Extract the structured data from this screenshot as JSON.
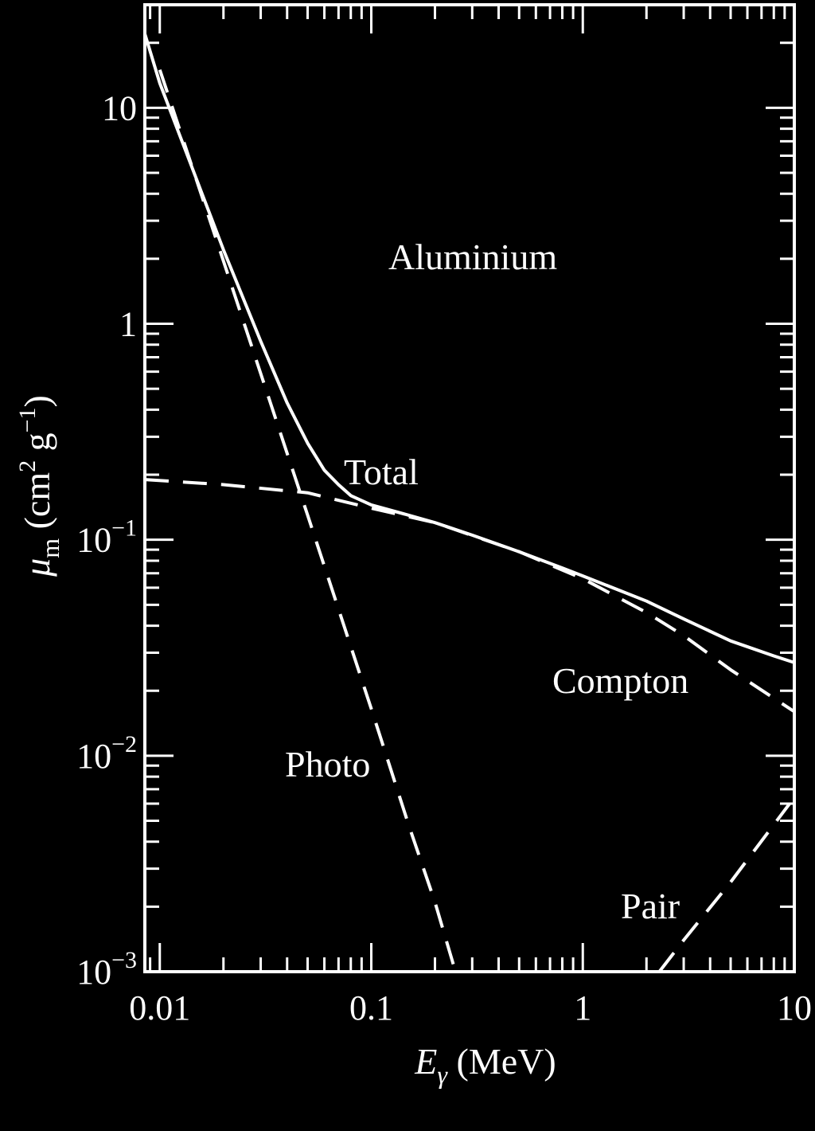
{
  "chart_data": {
    "type": "line",
    "title": "",
    "inner_label": "Aluminium",
    "xlabel": {
      "main": "E",
      "sub": "γ",
      "unit": " (MeV)"
    },
    "ylabel": {
      "main": "μ",
      "sub": "m",
      "unit_open": " (cm",
      "unit_sup1": "2",
      "unit_mid": " g",
      "unit_sup2": "−1",
      "unit_close": ")"
    },
    "xscale": "log",
    "yscale": "log",
    "xlim": [
      0.0085,
      10
    ],
    "ylim": [
      0.001,
      30
    ],
    "x_ticks": [
      {
        "value": 0.01,
        "label": "0.01"
      },
      {
        "value": 0.1,
        "label": "0.1"
      },
      {
        "value": 1,
        "label": "1"
      },
      {
        "value": 10,
        "label": "10"
      }
    ],
    "y_ticks": [
      {
        "value": 0.001,
        "base": "10",
        "exp": "−3"
      },
      {
        "value": 0.01,
        "base": "10",
        "exp": "−2"
      },
      {
        "value": 0.1,
        "base": "10",
        "exp": "−1"
      },
      {
        "value": 1,
        "base": "1",
        "exp": ""
      },
      {
        "value": 10,
        "base": "10",
        "exp": ""
      }
    ],
    "grid": false,
    "series": [
      {
        "name": "Total",
        "style": "solid",
        "x": [
          0.0085,
          0.01,
          0.015,
          0.02,
          0.03,
          0.04,
          0.05,
          0.06,
          0.07,
          0.08,
          0.1,
          0.15,
          0.2,
          0.3,
          0.5,
          0.8,
          1,
          2,
          3,
          5,
          8,
          10
        ],
        "y": [
          22,
          13,
          4.6,
          2.2,
          0.83,
          0.43,
          0.28,
          0.21,
          0.18,
          0.16,
          0.145,
          0.13,
          0.12,
          0.105,
          0.088,
          0.074,
          0.068,
          0.052,
          0.043,
          0.034,
          0.029,
          0.027
        ]
      },
      {
        "name": "Photo",
        "style": "dashed",
        "x": [
          0.01,
          0.02,
          0.05,
          0.1,
          0.15,
          0.2,
          0.25
        ],
        "y": [
          15,
          1.95,
          0.13,
          0.0165,
          0.0048,
          0.0021,
          0.001
        ]
      },
      {
        "name": "Compton",
        "style": "dashed",
        "x": [
          0.0085,
          0.02,
          0.05,
          0.1,
          0.2,
          0.5,
          1,
          2,
          3,
          5,
          10
        ],
        "y": [
          0.19,
          0.18,
          0.165,
          0.14,
          0.12,
          0.088,
          0.066,
          0.046,
          0.036,
          0.025,
          0.016
        ]
      },
      {
        "name": "Pair",
        "style": "dashed",
        "x": [
          2.3,
          3,
          5,
          9.5
        ],
        "y": [
          0.001,
          0.0014,
          0.0026,
          0.006
        ]
      }
    ],
    "series_labels": [
      "Total",
      "Photo",
      "Compton",
      "Pair"
    ]
  }
}
